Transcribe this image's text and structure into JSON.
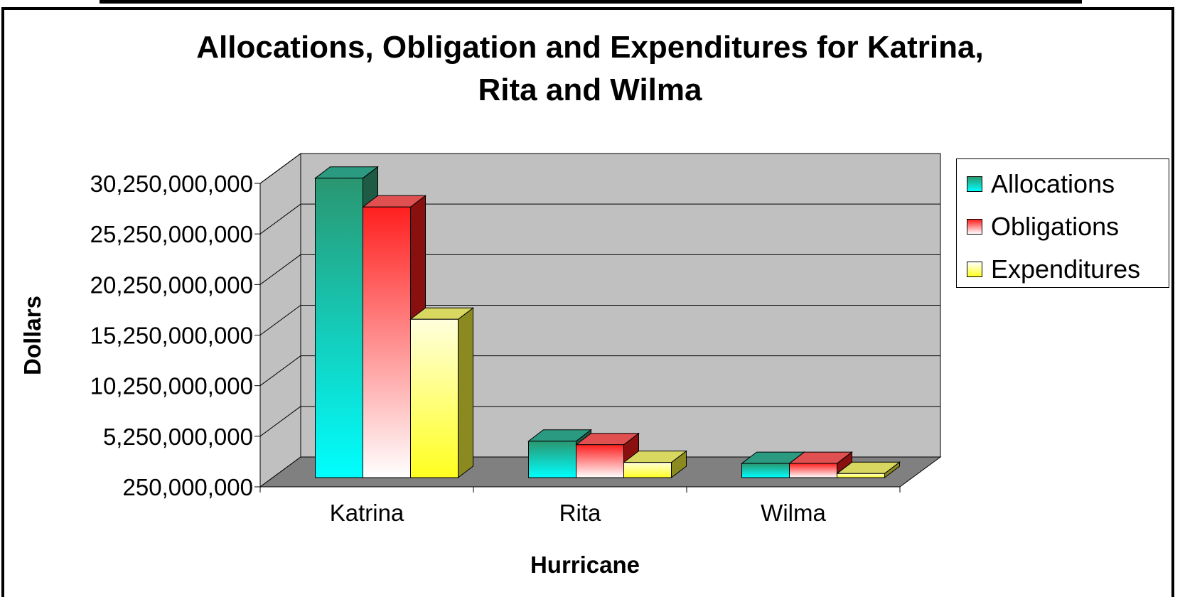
{
  "chart_data": {
    "type": "bar",
    "title_lines": [
      "Allocations, Obligation and Expenditures for Katrina,",
      "Rita and Wilma"
    ],
    "xlabel": "Hurricane",
    "ylabel": "Dollars",
    "categories": [
      "Katrina",
      "Rita",
      "Wilma"
    ],
    "series": [
      {
        "name": "Allocations",
        "values": [
          29850000000,
          3850000000,
          1650000000
        ],
        "color": "#00e8e8"
      },
      {
        "name": "Obligations",
        "values": [
          27000000000,
          3500000000,
          1650000000
        ],
        "color": "#ff2222"
      },
      {
        "name": "Expenditures",
        "values": [
          15900000000,
          1750000000,
          650000000
        ],
        "color": "#ffff33"
      }
    ],
    "yticks": [
      "250,000,000",
      "5,250,000,000",
      "10,250,000,000",
      "15,250,000,000",
      "20,250,000,000",
      "25,250,000,000",
      "30,250,000,000"
    ],
    "ylim": [
      250000000,
      30250000000
    ],
    "grid": true,
    "legend_position": "right"
  }
}
